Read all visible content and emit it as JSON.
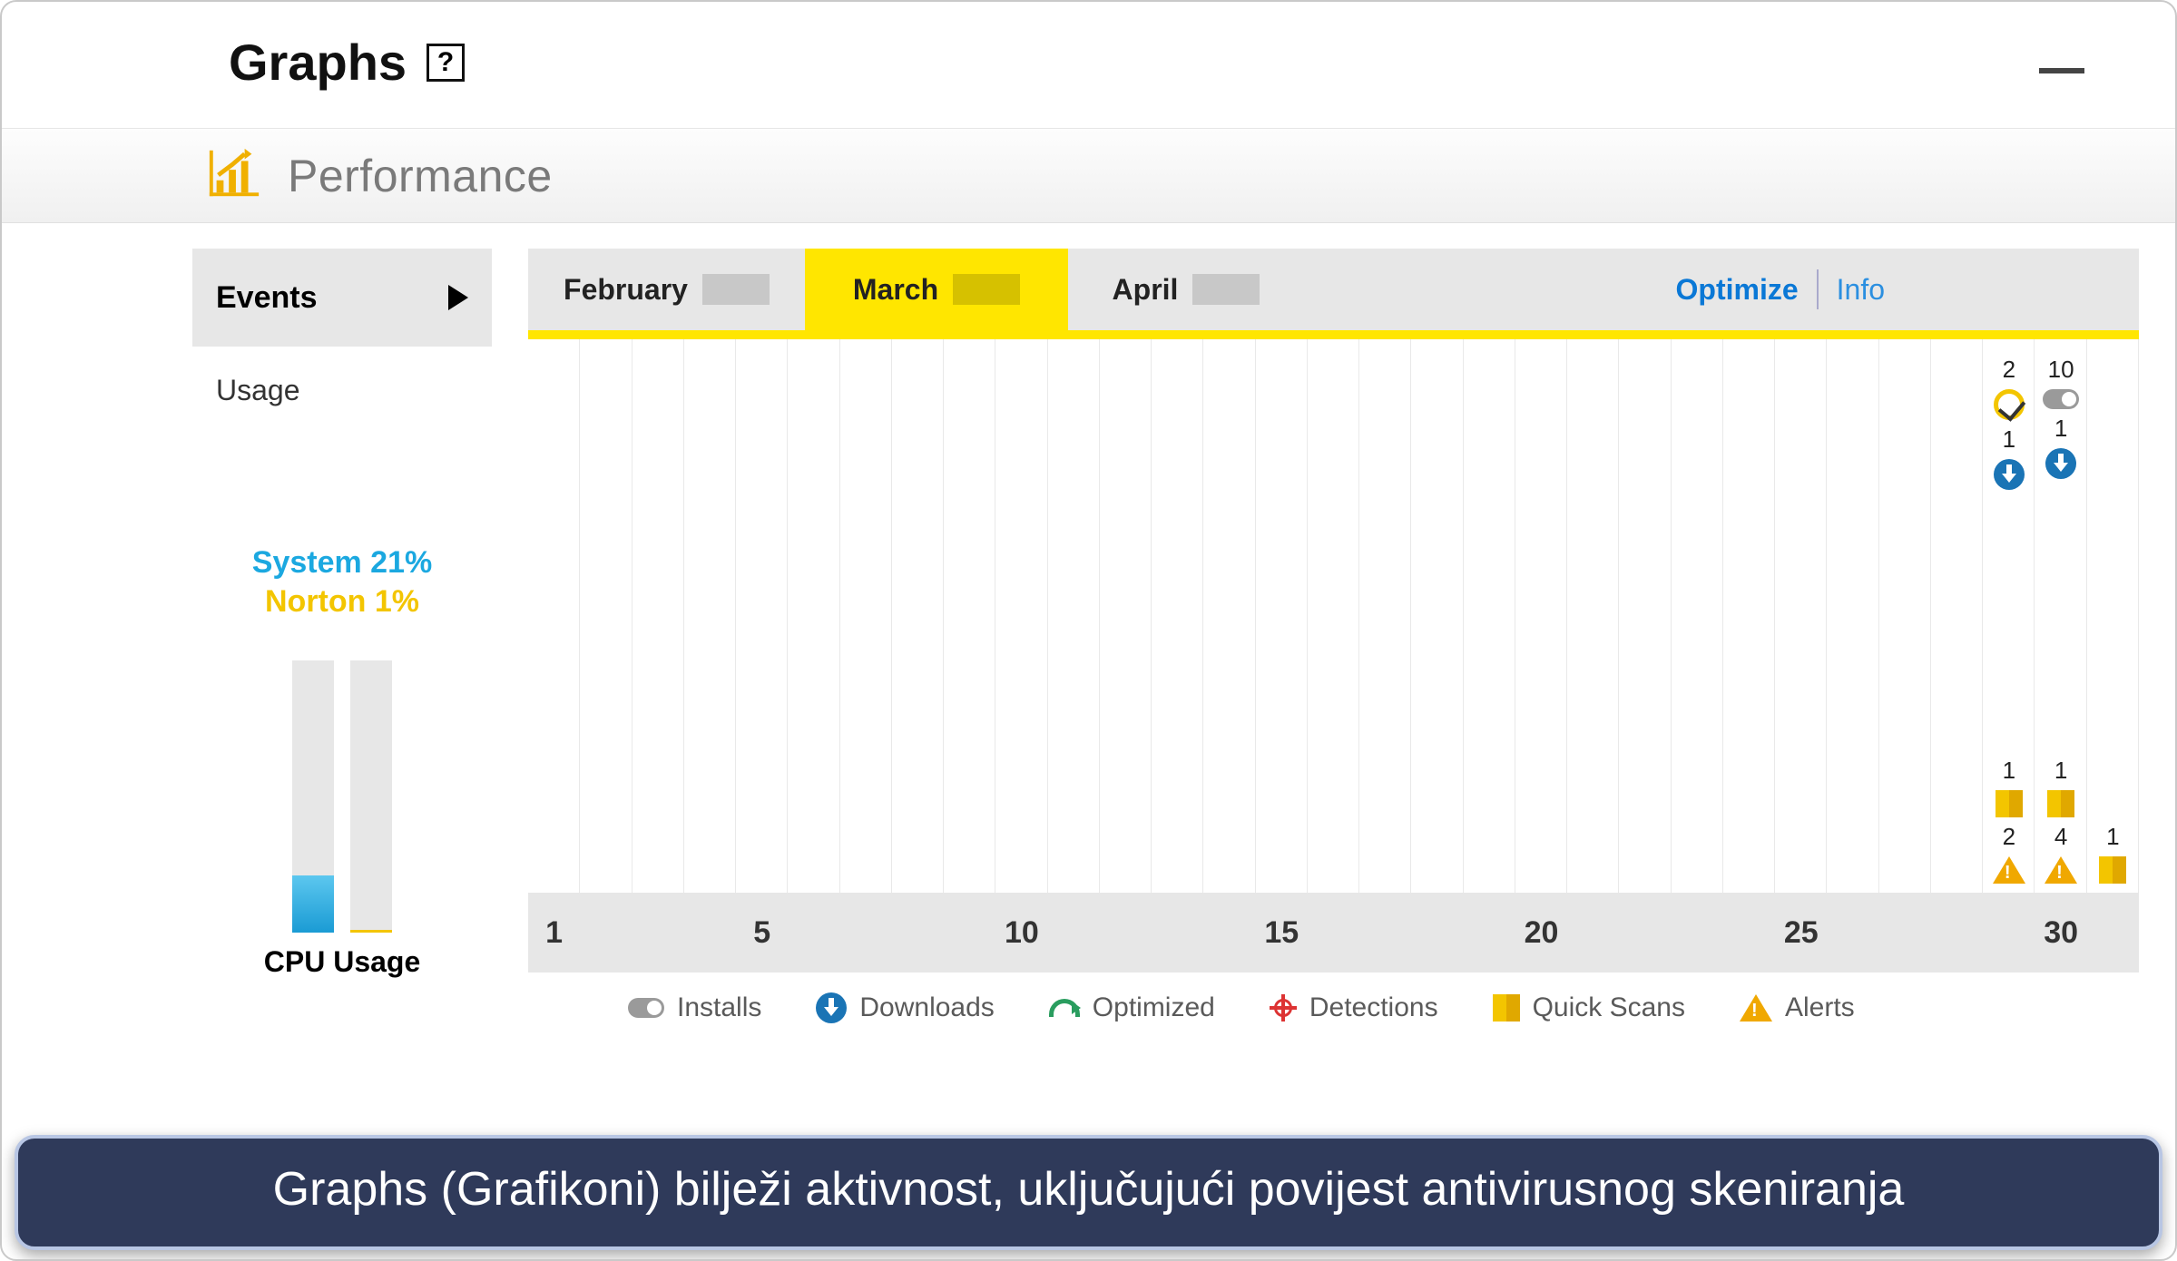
{
  "window": {
    "title": "Graphs",
    "help_glyph": "?",
    "colors": {
      "background": "#ffffff",
      "border": "#c9c9c9",
      "accent_yellow": "#ffe600",
      "accent_blue": "#1ba8e0",
      "grid_line": "#e9e9e9",
      "panel_gray": "#e7e7e7",
      "link_blue": "#0a78d6",
      "caption_bg": "#2f3a5a",
      "caption_border": "#b8c6e4"
    }
  },
  "performance_label": "Performance",
  "sidebar": {
    "events_label": "Events",
    "usage_label": "Usage",
    "cpu": {
      "system_label": "System 21%",
      "norton_label": "Norton 1%",
      "system_pct": 21,
      "norton_pct": 1,
      "caption": "CPU Usage",
      "bar_bg": "#e7e7e7",
      "system_fill": "#1a9bd4",
      "norton_fill": "#f3c500"
    }
  },
  "months": {
    "tabs": [
      {
        "label": "February",
        "selected": false
      },
      {
        "label": "March",
        "selected": true
      },
      {
        "label": "April",
        "selected": false
      }
    ],
    "optimize_label": "Optimize",
    "info_label": "Info"
  },
  "timeline": {
    "days": 31,
    "xticks": [
      1,
      5,
      10,
      15,
      20,
      25,
      30
    ],
    "tick_fontsize": 34,
    "col_border_color": "#e9e9e9",
    "events": {
      "29": {
        "top": [
          {
            "count": 2,
            "icon": "check"
          },
          {
            "count": 1,
            "icon": "download"
          }
        ],
        "bottom": [
          {
            "count": 1,
            "icon": "scan"
          },
          {
            "count": 2,
            "icon": "alert"
          }
        ]
      },
      "30": {
        "top": [
          {
            "count": 10,
            "icon": "toggle"
          },
          {
            "count": 1,
            "icon": "download"
          }
        ],
        "bottom": [
          {
            "count": 1,
            "icon": "scan"
          },
          {
            "count": 4,
            "icon": "alert"
          }
        ]
      },
      "31": {
        "top": [],
        "bottom": [
          {
            "count": 1,
            "icon": "scan"
          }
        ]
      }
    }
  },
  "legend": [
    {
      "icon": "toggle",
      "label": "Installs"
    },
    {
      "icon": "download",
      "label": "Downloads"
    },
    {
      "icon": "optimize",
      "label": "Optimized"
    },
    {
      "icon": "detect",
      "label": "Detections"
    },
    {
      "icon": "scan",
      "label": "Quick Scans"
    },
    {
      "icon": "alert",
      "label": "Alerts"
    }
  ],
  "caption": "Graphs (Grafikoni) bilježi aktivnost, uključujući povijest antivirusnog skeniranja"
}
